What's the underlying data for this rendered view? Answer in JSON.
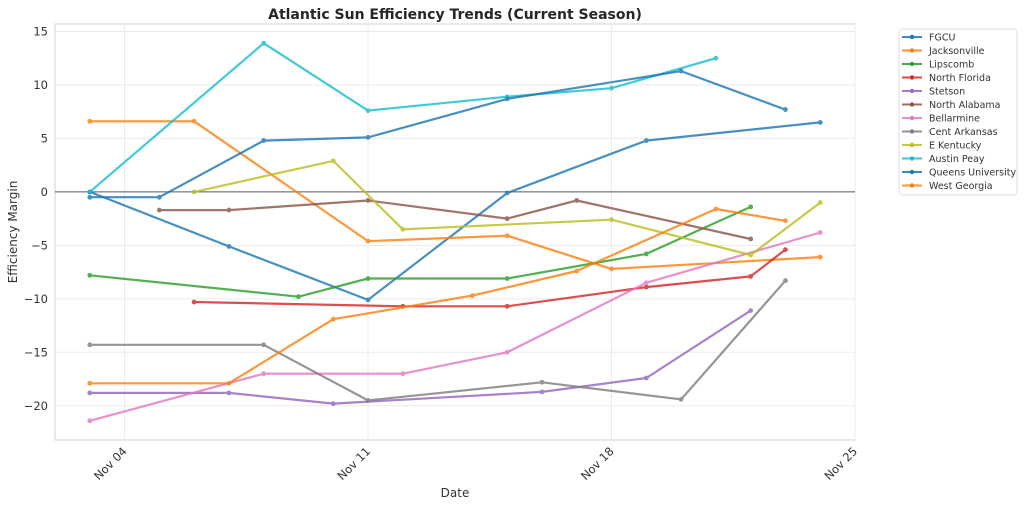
{
  "chart_data": {
    "type": "line",
    "title": "Atlantic Sun Efficiency Trends (Current Season)",
    "xlabel": "Date",
    "ylabel": "Efficiency Margin",
    "x_domain_days": [
      2,
      25
    ],
    "ylim": [
      -23.2,
      15.7
    ],
    "x_ticks": [
      {
        "day": 4,
        "label": "Nov 04"
      },
      {
        "day": 11,
        "label": "Nov 11"
      },
      {
        "day": 18,
        "label": "Nov 18"
      },
      {
        "day": 25,
        "label": "Nov 25"
      }
    ],
    "y_ticks": [
      {
        "value": 15,
        "label": "15"
      },
      {
        "value": 10,
        "label": "10"
      },
      {
        "value": 5,
        "label": "5"
      },
      {
        "value": 0,
        "label": "0"
      },
      {
        "value": -5,
        "label": "−5"
      },
      {
        "value": -10,
        "label": "−10"
      },
      {
        "value": -15,
        "label": "−15"
      },
      {
        "value": -20,
        "label": "−20"
      }
    ],
    "grid": true,
    "reference_line_y": 0,
    "legend_position": "outside-top-right",
    "series": [
      {
        "name": "FGCU",
        "color": "#1f77b4",
        "points": [
          [
            3,
            0.0
          ],
          [
            7,
            -5.1
          ],
          [
            11,
            -10.1
          ],
          [
            15,
            -0.1
          ],
          [
            19,
            4.8
          ],
          [
            24,
            6.5
          ]
        ]
      },
      {
        "name": "Jacksonville",
        "color": "#ff7f0e",
        "points": [
          [
            3,
            6.6
          ],
          [
            6,
            6.6
          ],
          [
            11,
            -4.6
          ],
          [
            15,
            -4.1
          ],
          [
            18,
            -7.2
          ],
          [
            24,
            -6.1
          ]
        ]
      },
      {
        "name": "Lipscomb",
        "color": "#2ca02c",
        "points": [
          [
            3,
            -7.8
          ],
          [
            9,
            -9.8
          ],
          [
            11,
            -8.1
          ],
          [
            15,
            -8.1
          ],
          [
            19,
            -5.8
          ],
          [
            22,
            -1.4
          ]
        ]
      },
      {
        "name": "North Florida",
        "color": "#d62728",
        "points": [
          [
            6,
            -10.3
          ],
          [
            12,
            -10.7
          ],
          [
            15,
            -10.7
          ],
          [
            19,
            -8.9
          ],
          [
            22,
            -7.9
          ],
          [
            23,
            -5.4
          ]
        ]
      },
      {
        "name": "Stetson",
        "color": "#9467bd",
        "points": [
          [
            3,
            -18.8
          ],
          [
            7,
            -18.8
          ],
          [
            10,
            -19.8
          ],
          [
            16,
            -18.7
          ],
          [
            19,
            -17.4
          ],
          [
            22,
            -11.1
          ]
        ]
      },
      {
        "name": "North Alabama",
        "color": "#8c564b",
        "points": [
          [
            5,
            -1.7
          ],
          [
            7,
            -1.7
          ],
          [
            11,
            -0.8
          ],
          [
            15,
            -2.5
          ],
          [
            17,
            -0.8
          ],
          [
            22,
            -4.4
          ]
        ]
      },
      {
        "name": "Bellarmine",
        "color": "#e377c2",
        "points": [
          [
            3,
            -21.4
          ],
          [
            8,
            -17.0
          ],
          [
            12,
            -17.0
          ],
          [
            15,
            -15.0
          ],
          [
            19,
            -8.5
          ],
          [
            24,
            -3.8
          ]
        ]
      },
      {
        "name": "Cent Arkansas",
        "color": "#7f7f7f",
        "points": [
          [
            3,
            -14.3
          ],
          [
            8,
            -14.3
          ],
          [
            11,
            -19.5
          ],
          [
            16,
            -17.8
          ],
          [
            20,
            -19.4
          ],
          [
            23,
            -8.3
          ]
        ]
      },
      {
        "name": "E Kentucky",
        "color": "#bcbd22",
        "points": [
          [
            6,
            0.0
          ],
          [
            10,
            2.9
          ],
          [
            12,
            -3.5
          ],
          [
            18,
            -2.6
          ],
          [
            22,
            -5.9
          ],
          [
            24,
            -1.0
          ]
        ]
      },
      {
        "name": "Austin Peay",
        "color": "#17becf",
        "points": [
          [
            3,
            0.0
          ],
          [
            8,
            13.9
          ],
          [
            11,
            7.6
          ],
          [
            15,
            8.9
          ],
          [
            18,
            9.7
          ],
          [
            21,
            12.5
          ]
        ]
      },
      {
        "name": "Queens University",
        "color": "#1f77b4",
        "points": [
          [
            3,
            -0.5
          ],
          [
            5,
            -0.5
          ],
          [
            8,
            4.8
          ],
          [
            11,
            5.1
          ],
          [
            15,
            8.7
          ],
          [
            20,
            11.3
          ],
          [
            23,
            7.7
          ]
        ]
      },
      {
        "name": "West Georgia",
        "color": "#ff7f0e",
        "points": [
          [
            3,
            -17.9
          ],
          [
            7,
            -17.9
          ],
          [
            10,
            -11.9
          ],
          [
            14,
            -9.7
          ],
          [
            17,
            -7.4
          ],
          [
            21,
            -1.6
          ],
          [
            23,
            -2.7
          ]
        ]
      }
    ]
  }
}
